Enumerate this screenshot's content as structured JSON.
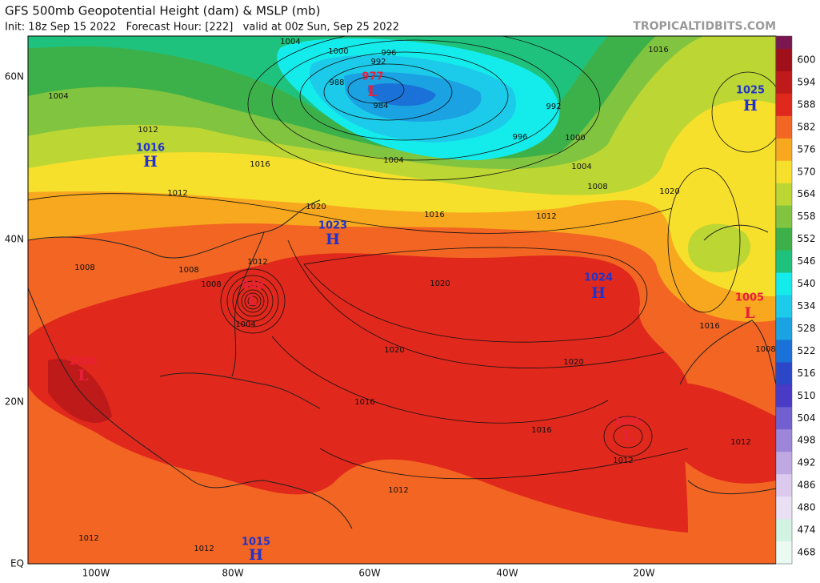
{
  "header": {
    "title": "GFS 500mb Geopotential Height (dam) & MSLP (mb)",
    "subtitle": "Init: 18z Sep 15 2022   Forecast Hour: [222]   valid at 00z Sun, Sep 25 2022",
    "watermark": "TROPICALTIDBITS.COM"
  },
  "map": {
    "lat_labels": [
      "60N",
      "40N",
      "20N",
      "EQ"
    ],
    "lon_labels": [
      "100W",
      "80W",
      "60W",
      "40W",
      "20W"
    ],
    "pressure_centers": [
      {
        "type": "L",
        "value": "977"
      },
      {
        "type": "H",
        "value": "1016"
      },
      {
        "type": "H",
        "value": "1023"
      },
      {
        "type": "H",
        "value": "1024"
      },
      {
        "type": "H",
        "value": "1025"
      },
      {
        "type": "L",
        "value": "1005"
      },
      {
        "type": "L",
        "value": "1004"
      },
      {
        "type": "L",
        "value": "1005"
      },
      {
        "type": "L",
        "value": "940"
      },
      {
        "type": "H",
        "value": "1015"
      }
    ],
    "isobar_labels": [
      "1004",
      "1012",
      "1008",
      "1008",
      "1008",
      "1012",
      "1004",
      "1020",
      "1016",
      "1012",
      "1020",
      "1008",
      "1004",
      "1000",
      "992",
      "996",
      "984",
      "988",
      "992",
      "996",
      "1000",
      "1004",
      "1016",
      "1020",
      "1020",
      "1020",
      "1016",
      "1016",
      "1012",
      "1012",
      "1012",
      "1012",
      "1016",
      "1008",
      "1012",
      "1016",
      "1012",
      "1004"
    ]
  },
  "colorbar": {
    "overflow_color": "#7a1650",
    "levels": [
      {
        "label": "600",
        "color": "#a0101a"
      },
      {
        "label": "594",
        "color": "#bf1a1a"
      },
      {
        "label": "588",
        "color": "#e0281c"
      },
      {
        "label": "582",
        "color": "#f26522"
      },
      {
        "label": "576",
        "color": "#f8a81e"
      },
      {
        "label": "570",
        "color": "#f6e02c"
      },
      {
        "label": "564",
        "color": "#bcd633"
      },
      {
        "label": "558",
        "color": "#80c440"
      },
      {
        "label": "552",
        "color": "#3cb14a"
      },
      {
        "label": "546",
        "color": "#1fc27c"
      },
      {
        "label": "540",
        "color": "#14ecec"
      },
      {
        "label": "534",
        "color": "#1ccbe9"
      },
      {
        "label": "528",
        "color": "#1aa2e2"
      },
      {
        "label": "522",
        "color": "#1a72d8"
      },
      {
        "label": "516",
        "color": "#2b46c6"
      },
      {
        "label": "510",
        "color": "#4a3bc6"
      },
      {
        "label": "504",
        "color": "#7260d0"
      },
      {
        "label": "498",
        "color": "#9d86d9"
      },
      {
        "label": "492",
        "color": "#c0a9e2"
      },
      {
        "label": "486",
        "color": "#dccaee"
      },
      {
        "label": "480",
        "color": "#eae0f4"
      },
      {
        "label": "474",
        "color": "#d2f2e2"
      },
      {
        "label": "468",
        "color": "#eaf9f1"
      }
    ]
  }
}
